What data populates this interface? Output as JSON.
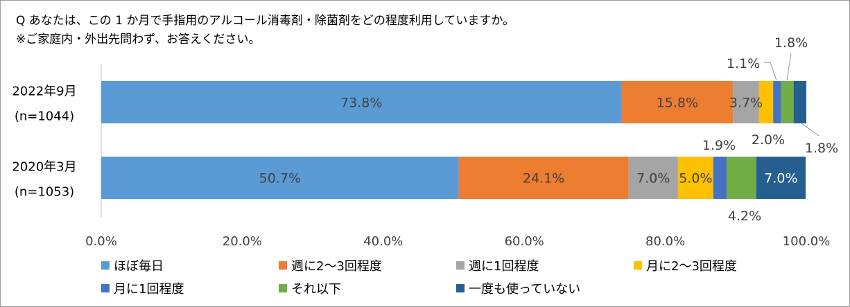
{
  "title": {
    "line1": "Q あなたは、この 1 か月で手指用のアルコール消毒剤・除菌剤をどの程度利用していますか。",
    "line2": "※ご家庭内・外出先問わず、お答えください。"
  },
  "chart_data": {
    "type": "bar",
    "orientation": "horizontal",
    "stacked": true,
    "categories": [
      {
        "label": "2022年9月",
        "sublabel": "(n=1044)"
      },
      {
        "label": "2020年3月",
        "sublabel": "(n=1053)"
      }
    ],
    "series": [
      {
        "name": "ほぼ毎日",
        "color": "#5B9BD5",
        "values": [
          73.8,
          50.7
        ],
        "labels": [
          "73.8%",
          "50.7%"
        ]
      },
      {
        "name": "週に2～3回程度",
        "color": "#ED7D31",
        "values": [
          15.8,
          24.1
        ],
        "labels": [
          "15.8%",
          "24.1%"
        ]
      },
      {
        "name": "週に1回程度",
        "color": "#A5A5A5",
        "values": [
          3.7,
          7.0
        ],
        "labels": [
          "3.7%",
          "7.0%"
        ]
      },
      {
        "name": "月に2～3回程度",
        "color": "#FFC000",
        "values": [
          2.0,
          5.0
        ],
        "labels": [
          "2.0%",
          "5.0%"
        ]
      },
      {
        "name": "月に1回程度",
        "color": "#4472C4",
        "values": [
          1.1,
          1.9
        ],
        "labels": [
          "1.1%",
          "1.9%"
        ]
      },
      {
        "name": "それ以下",
        "color": "#70AD47",
        "values": [
          1.8,
          4.2
        ],
        "labels": [
          "1.8%",
          "4.2%"
        ]
      },
      {
        "name": "一度も使っていない",
        "color": "#255E91",
        "values": [
          1.8,
          7.0
        ],
        "labels": [
          "1.8%",
          "7.0%"
        ]
      }
    ],
    "xaxis": {
      "ticks": [
        0,
        20,
        40,
        60,
        80,
        100
      ],
      "tick_labels": [
        "0.0%",
        "20.0%",
        "40.0%",
        "60.0%",
        "80.0%",
        "100.0%"
      ],
      "range": [
        0,
        100
      ]
    },
    "grid": false,
    "legend_position": "bottom"
  }
}
